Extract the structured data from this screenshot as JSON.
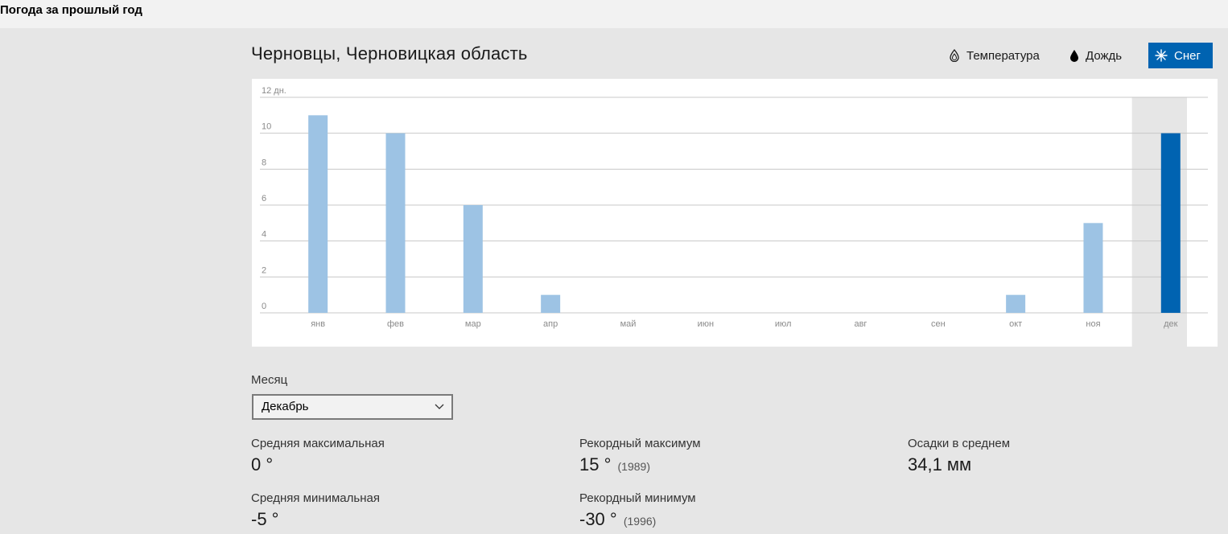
{
  "app": {
    "title": "Погода за прошлый год"
  },
  "location": "Черновцы, Черновицкая область",
  "toggles": [
    {
      "label": "Температура",
      "icon": "temperature-icon",
      "active": false
    },
    {
      "label": "Дождь",
      "icon": "raindrop-icon",
      "active": false
    },
    {
      "label": "Снег",
      "icon": "snowflake-icon",
      "active": true
    }
  ],
  "colors": {
    "accent": "#0063b1",
    "bar": "#9dc3e4",
    "bar_selected": "#0063b1"
  },
  "chart_data": {
    "type": "bar",
    "categories": [
      "янв",
      "фев",
      "мар",
      "апр",
      "май",
      "июн",
      "июл",
      "авг",
      "сен",
      "окт",
      "ноя",
      "дек"
    ],
    "values": [
      11,
      10,
      6,
      1,
      0,
      0,
      0,
      0,
      0,
      1,
      5,
      10
    ],
    "selected_index": 11,
    "ylim": [
      0,
      12
    ],
    "yticks": [
      "0",
      "2",
      "4",
      "6",
      "8",
      "10",
      "12 дн."
    ],
    "grid": true
  },
  "month": {
    "label": "Месяц",
    "selected": "Декабрь"
  },
  "stats": {
    "avg_max": {
      "label": "Средняя максимальная",
      "value": "0 °"
    },
    "avg_min": {
      "label": "Средняя минимальная",
      "value": "-5 °"
    },
    "record_max": {
      "label": "Рекордный максимум",
      "value": "15 °",
      "year": "(1989)"
    },
    "record_min": {
      "label": "Рекордный минимум",
      "value": "-30 °",
      "year": "(1996)"
    },
    "precip": {
      "label": "Осадки в среднем",
      "value": "34,1 мм"
    }
  }
}
